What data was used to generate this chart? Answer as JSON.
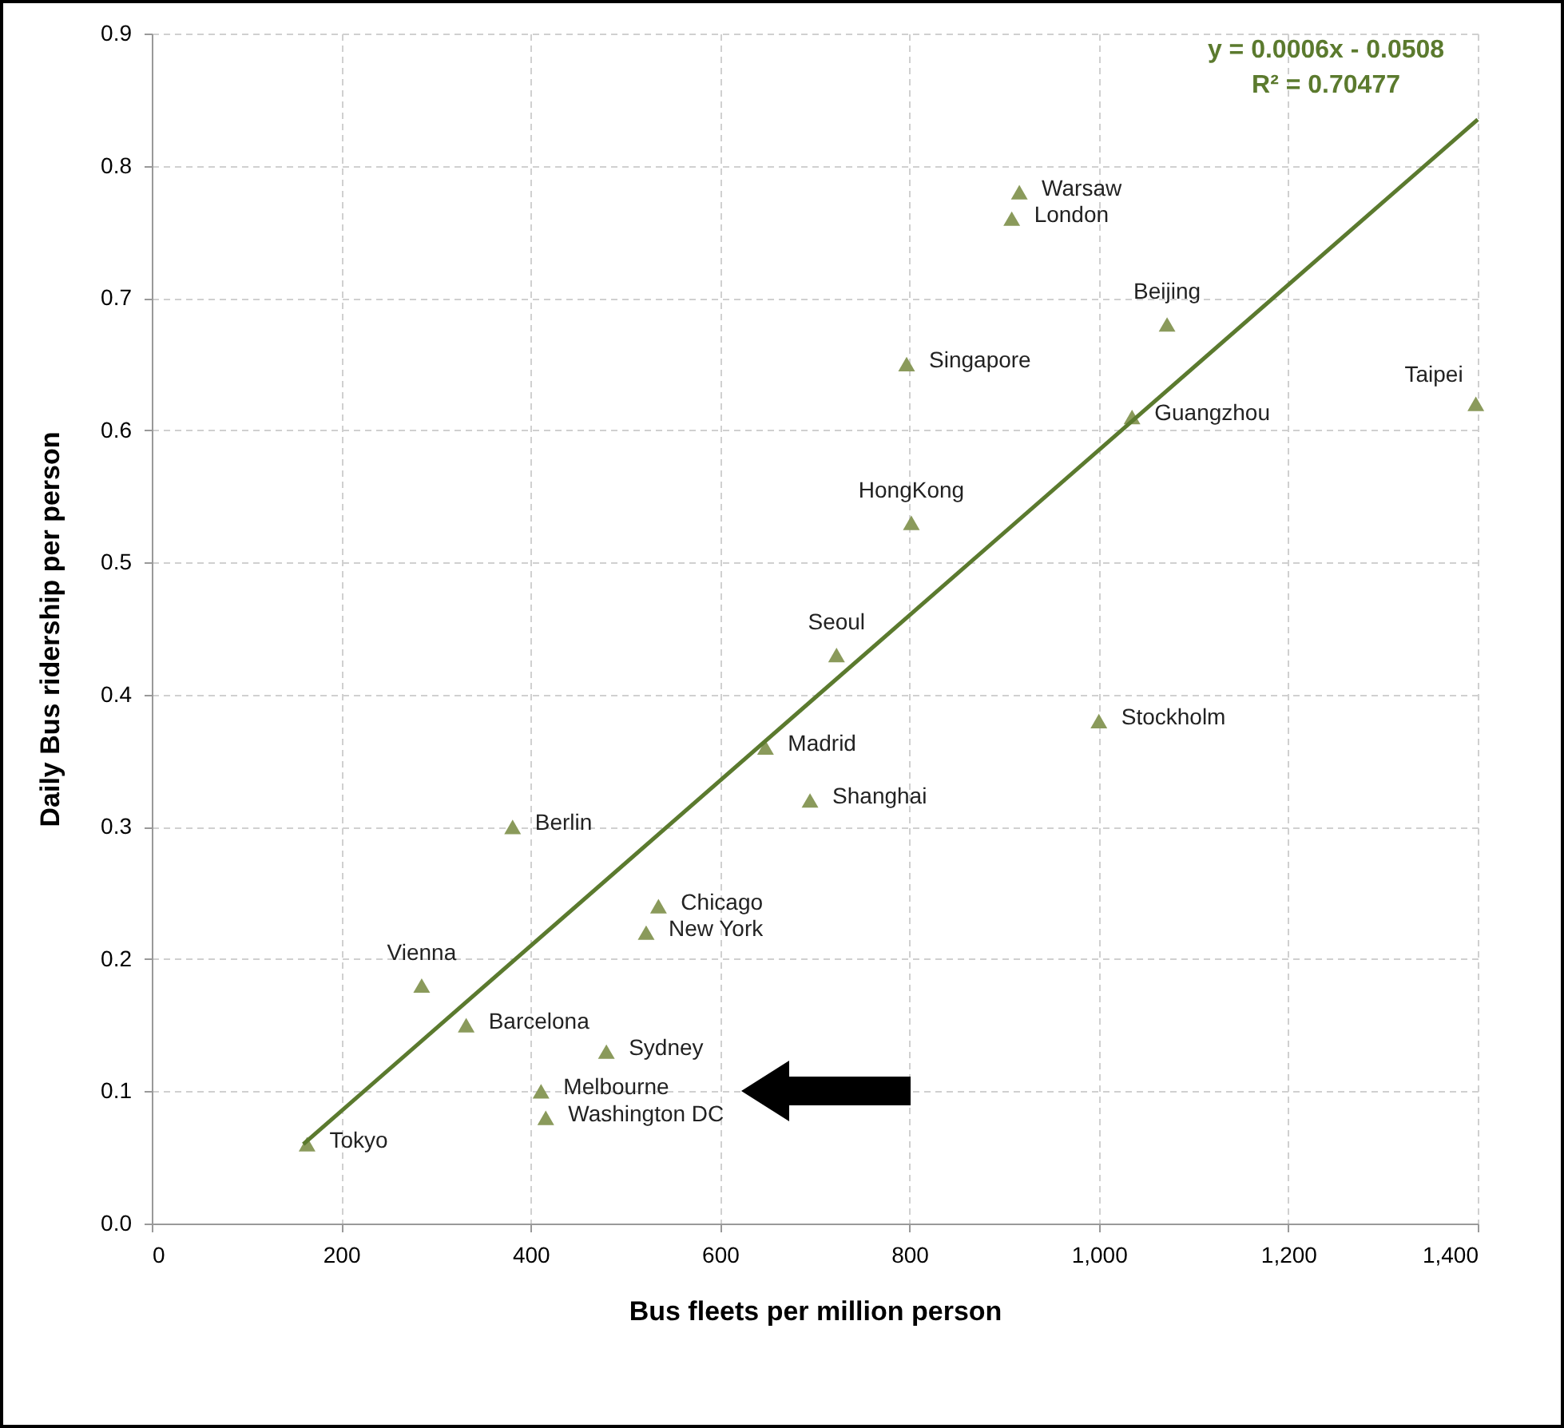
{
  "chart_data": {
    "type": "scatter",
    "xlabel": "Bus fleets per million person",
    "ylabel": "Daily Bus ridership per person",
    "xlim": [
      0,
      1400
    ],
    "ylim": [
      0,
      0.9
    ],
    "xticks": [
      0,
      200,
      400,
      600,
      800,
      {
        "value": 1000,
        "label": "1,000"
      },
      {
        "value": 1200,
        "label": "1,200"
      },
      {
        "value": 1400,
        "label": "1,400"
      }
    ],
    "yticks": [
      {
        "value": 0,
        "label": "0.0"
      },
      0.1,
      0.2,
      0.3,
      0.4,
      0.5,
      0.6,
      0.7,
      0.8,
      0.9
    ],
    "grid": true,
    "series": [
      {
        "marker": "triangle",
        "color": "#8a9a5b",
        "x": [
          164,
          285,
          332,
          381,
          411,
          416,
          480,
          522,
          535,
          648,
          695,
          723,
          802,
          797,
          1000,
          1035,
          1072,
          916,
          908,
          1398
        ],
        "values": [
          0.06,
          0.18,
          0.15,
          0.3,
          0.1,
          0.08,
          0.13,
          0.22,
          0.24,
          0.36,
          0.32,
          0.43,
          0.53,
          0.65,
          0.38,
          0.61,
          0.68,
          0.78,
          0.76,
          0.62
        ]
      },
      {
        "type": "line",
        "line_style": "solid",
        "color": "#5b7a2e",
        "x": [
          160,
          1400
        ],
        "values": [
          0.06,
          0.835
        ]
      }
    ],
    "annotations": [
      "y = 0.0006x - 0.0508",
      "R² = 0.70477",
      {
        "text": "Tokyo",
        "x": 164,
        "y": 0.06
      },
      {
        "text": "Vienna",
        "x": 285,
        "y": 0.18
      },
      {
        "text": "Barcelona",
        "x": 332,
        "y": 0.15
      },
      {
        "text": "Berlin",
        "x": 381,
        "y": 0.3
      },
      {
        "text": "Melbourne",
        "x": 411,
        "y": 0.1
      },
      {
        "text": "Washington DC",
        "x": 416,
        "y": 0.08
      },
      {
        "text": "Sydney",
        "x": 480,
        "y": 0.13
      },
      {
        "text": "New York",
        "x": 522,
        "y": 0.22
      },
      {
        "text": "Chicago",
        "x": 535,
        "y": 0.24
      },
      {
        "text": "Madrid",
        "x": 648,
        "y": 0.36
      },
      {
        "text": "Shanghai",
        "x": 695,
        "y": 0.32
      },
      {
        "text": "Seoul",
        "x": 723,
        "y": 0.43
      },
      {
        "text": "HongKong",
        "x": 802,
        "y": 0.53
      },
      {
        "text": "Singapore",
        "x": 797,
        "y": 0.65
      },
      {
        "text": "Stockholm",
        "x": 1000,
        "y": 0.38
      },
      {
        "text": "Guangzhou",
        "x": 1035,
        "y": 0.61
      },
      {
        "text": "Beijing",
        "x": 1072,
        "y": 0.68
      },
      {
        "text": "Warsaw",
        "x": 916,
        "y": 0.78
      },
      {
        "text": "London",
        "x": 908,
        "y": 0.76
      },
      {
        "text": "Taipei",
        "x": 1398,
        "y": 0.62
      }
    ]
  }
}
